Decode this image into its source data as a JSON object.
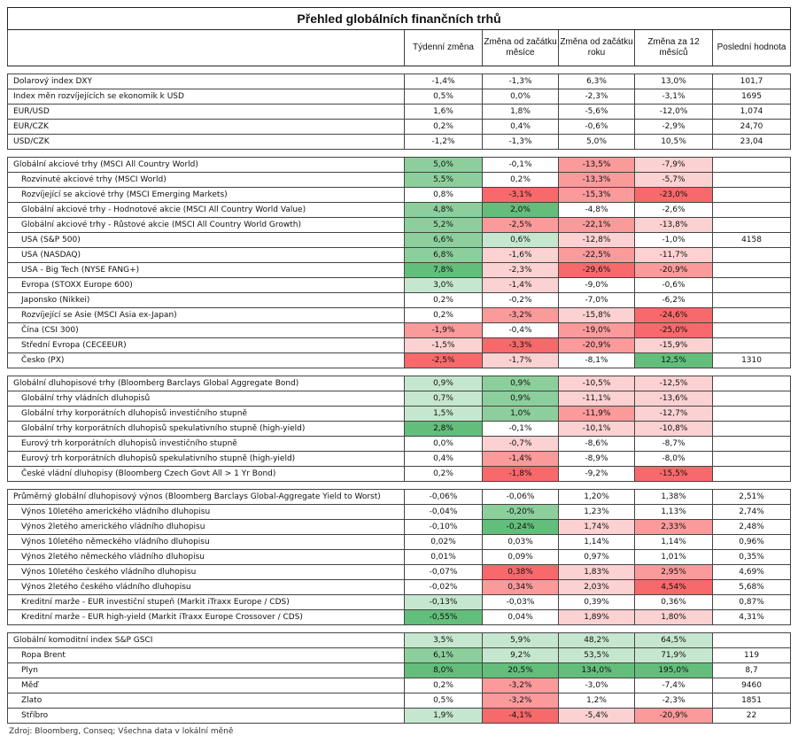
{
  "title": "Přehled globálních finančních trhů",
  "columns": [
    "",
    "Týdenní změna",
    "Změna od začátku měsíce",
    "Změna od začátku roku",
    "Změna za 12 měsíců",
    "Poslední hodnota"
  ],
  "colors": {
    "g3": "#63be7b",
    "g2": "#8ccf9c",
    "g1": "#c6e7cf",
    "r3": "#f8696b",
    "r2": "#fa9a9b",
    "r1": "#fcd1d1"
  },
  "groups": [
    {
      "rows": [
        {
          "label": "Dolarový index DXY",
          "indent": false,
          "values": [
            "-1,4%",
            "-1,3%",
            "6,3%",
            "13,0%",
            "101,7"
          ],
          "colors": [
            "",
            "",
            "",
            "",
            ""
          ]
        },
        {
          "label": "Index měn rozvíjejících se ekonomik k USD",
          "indent": false,
          "values": [
            "0,5%",
            "0,0%",
            "-2,3%",
            "-3,1%",
            "1695"
          ],
          "colors": [
            "",
            "",
            "",
            "",
            ""
          ]
        },
        {
          "label": "EUR/USD",
          "indent": false,
          "values": [
            "1,6%",
            "1,8%",
            "-5,6%",
            "-12,0%",
            "1,074"
          ],
          "colors": [
            "",
            "",
            "",
            "",
            ""
          ]
        },
        {
          "label": "EUR/CZK",
          "indent": false,
          "values": [
            "0,2%",
            "0,4%",
            "-0,6%",
            "-2,9%",
            "24,70"
          ],
          "colors": [
            "",
            "",
            "",
            "",
            ""
          ]
        },
        {
          "label": "USD/CZK",
          "indent": false,
          "values": [
            "-1,2%",
            "-1,3%",
            "5,0%",
            "10,5%",
            "23,04"
          ],
          "colors": [
            "",
            "",
            "",
            "",
            ""
          ]
        }
      ]
    },
    {
      "rows": [
        {
          "label": "Globální akciové trhy (MSCI All Country World)",
          "indent": false,
          "values": [
            "5,0%",
            "-0,1%",
            "-13,5%",
            "-7,9%",
            ""
          ],
          "colors": [
            "g2",
            "",
            "r2",
            "r1",
            ""
          ]
        },
        {
          "label": "Rozvinuté akciové trhy (MSCI World)",
          "indent": true,
          "values": [
            "5,5%",
            "0,2%",
            "-13,3%",
            "-5,7%",
            ""
          ],
          "colors": [
            "g2",
            "",
            "r2",
            "r1",
            ""
          ]
        },
        {
          "label": "Rozvíjející se akciové trhy (MSCI Emerging Markets)",
          "indent": true,
          "values": [
            "0,8%",
            "-3,1%",
            "-15,3%",
            "-23,0%",
            ""
          ],
          "colors": [
            "",
            "r3",
            "r2",
            "r3",
            ""
          ]
        },
        {
          "label": "Globální akciové trhy - Hodnotové akcie (MSCI All Country World Value)",
          "indent": true,
          "values": [
            "4,8%",
            "2,0%",
            "-4,8%",
            "-2,6%",
            ""
          ],
          "colors": [
            "g2",
            "g3",
            "",
            "",
            ""
          ]
        },
        {
          "label": "Globální akciové trhy - Růstové akcie (MSCI All Country World Growth)",
          "indent": true,
          "values": [
            "5,2%",
            "-2,5%",
            "-22,1%",
            "-13,8%",
            ""
          ],
          "colors": [
            "g2",
            "r2",
            "r2",
            "r1",
            ""
          ]
        },
        {
          "label": "USA (S&P 500)",
          "indent": true,
          "values": [
            "6,6%",
            "0,6%",
            "-12,8%",
            "-1,0%",
            "4158"
          ],
          "colors": [
            "g2",
            "g1",
            "r1",
            "",
            ""
          ]
        },
        {
          "label": "USA (NASDAQ)",
          "indent": true,
          "values": [
            "6,8%",
            "-1,6%",
            "-22,5%",
            "-11,7%",
            ""
          ],
          "colors": [
            "g2",
            "r1",
            "r2",
            "r1",
            ""
          ]
        },
        {
          "label": "USA - Big Tech (NYSE FANG+)",
          "indent": true,
          "values": [
            "7,8%",
            "-2,3%",
            "-29,6%",
            "-20,9%",
            ""
          ],
          "colors": [
            "g3",
            "r1",
            "r3",
            "r2",
            ""
          ]
        },
        {
          "label": "Evropa (STOXX Europe 600)",
          "indent": true,
          "values": [
            "3,0%",
            "-1,4%",
            "-9,0%",
            "-0,6%",
            ""
          ],
          "colors": [
            "g1",
            "r1",
            "",
            "",
            ""
          ]
        },
        {
          "label": "Japonsko (Nikkei)",
          "indent": true,
          "values": [
            "0,2%",
            "-0,2%",
            "-7,0%",
            "-6,2%",
            ""
          ],
          "colors": [
            "",
            "",
            "",
            "",
            ""
          ]
        },
        {
          "label": "Rozvíjející se Asie (MSCI Asia ex-Japan)",
          "indent": true,
          "values": [
            "0,2%",
            "-3,2%",
            "-15,8%",
            "-24,6%",
            ""
          ],
          "colors": [
            "",
            "r2",
            "r1",
            "r3",
            ""
          ]
        },
        {
          "label": "Čína (CSI 300)",
          "indent": true,
          "values": [
            "-1,9%",
            "-0,4%",
            "-19,0%",
            "-25,0%",
            ""
          ],
          "colors": [
            "r2",
            "",
            "r2",
            "r3",
            ""
          ]
        },
        {
          "label": "Střední Evropa (CECEEUR)",
          "indent": true,
          "values": [
            "-1,5%",
            "-3,3%",
            "-20,9%",
            "-15,9%",
            ""
          ],
          "colors": [
            "r1",
            "r3",
            "r2",
            "r1",
            ""
          ]
        },
        {
          "label": "Česko (PX)",
          "indent": true,
          "values": [
            "-2,5%",
            "-1,7%",
            "-8,1%",
            "12,5%",
            "1310"
          ],
          "colors": [
            "r3",
            "r1",
            "",
            "g3",
            ""
          ]
        }
      ]
    },
    {
      "rows": [
        {
          "label": "Globální dluhopisové trhy (Bloomberg Barclays Global Aggregate Bond)",
          "indent": false,
          "values": [
            "0,9%",
            "0,9%",
            "-10,5%",
            "-12,5%",
            ""
          ],
          "colors": [
            "g1",
            "g2",
            "r1",
            "r1",
            ""
          ]
        },
        {
          "label": "Globální trhy vládních dluhopisů",
          "indent": true,
          "values": [
            "0,7%",
            "0,9%",
            "-11,1%",
            "-13,6%",
            ""
          ],
          "colors": [
            "g1",
            "g2",
            "r1",
            "r1",
            ""
          ]
        },
        {
          "label": "Globální trhy korporátních dluhopisů investičního stupně",
          "indent": true,
          "values": [
            "1,5%",
            "1,0%",
            "-11,9%",
            "-12,7%",
            ""
          ],
          "colors": [
            "g1",
            "g2",
            "r2",
            "r1",
            ""
          ]
        },
        {
          "label": "Globální trhy korporátních dluhopisů spekulativního stupně (high-yield)",
          "indent": true,
          "values": [
            "2,8%",
            "-0,1%",
            "-10,1%",
            "-10,8%",
            ""
          ],
          "colors": [
            "g3",
            "",
            "r1",
            "r1",
            ""
          ]
        },
        {
          "label": "Eurový trh korporátních dluhopisů investičního stupně",
          "indent": true,
          "values": [
            "0,0%",
            "-0,7%",
            "-8,6%",
            "-8,7%",
            ""
          ],
          "colors": [
            "",
            "r1",
            "",
            "",
            ""
          ]
        },
        {
          "label": "Eurový trh korporátních dluhopisů spekulativního stupně (high-yield)",
          "indent": true,
          "values": [
            "0,4%",
            "-1,4%",
            "-8,9%",
            "-8,0%",
            ""
          ],
          "colors": [
            "",
            "r2",
            "",
            "",
            ""
          ]
        },
        {
          "label": "České vládní dluhopisy (Bloomberg Czech Govt All > 1 Yr Bond)",
          "indent": true,
          "values": [
            "0,2%",
            "-1,8%",
            "-9,2%",
            "-15,5%",
            ""
          ],
          "colors": [
            "",
            "r3",
            "",
            "r3",
            ""
          ]
        }
      ]
    },
    {
      "rows": [
        {
          "label": "Průměrný globální dluhopisový výnos (Bloomberg Barclays Global-Aggregate Yield to Worst)",
          "indent": false,
          "values": [
            "-0,06%",
            "-0,06%",
            "1,20%",
            "1,38%",
            "2,51%"
          ],
          "colors": [
            "",
            "",
            "",
            "",
            ""
          ]
        },
        {
          "label": "Výnos 10letého amerického vládního dluhopisu",
          "indent": true,
          "values": [
            "-0,04%",
            "-0,20%",
            "1,23%",
            "1,13%",
            "2,74%"
          ],
          "colors": [
            "",
            "g2",
            "",
            "",
            ""
          ]
        },
        {
          "label": "Výnos 2letého amerického vládního dluhopisu",
          "indent": true,
          "values": [
            "-0,10%",
            "-0,24%",
            "1,74%",
            "2,33%",
            "2,48%"
          ],
          "colors": [
            "",
            "g3",
            "r1",
            "r2",
            ""
          ]
        },
        {
          "label": "Výnos 10letého německého vládního dluhopisu",
          "indent": true,
          "values": [
            "0,02%",
            "0,03%",
            "1,14%",
            "1,14%",
            "0,96%"
          ],
          "colors": [
            "",
            "",
            "",
            "",
            ""
          ]
        },
        {
          "label": "Výnos 2letého německého vládního dluhopisu",
          "indent": true,
          "values": [
            "0,01%",
            "0,09%",
            "0,97%",
            "1,01%",
            "0,35%"
          ],
          "colors": [
            "",
            "",
            "",
            "",
            ""
          ]
        },
        {
          "label": "Výnos 10letého českého vládního dluhopisu",
          "indent": true,
          "values": [
            "-0,07%",
            "0,38%",
            "1,83%",
            "2,95%",
            "4,69%"
          ],
          "colors": [
            "",
            "r3",
            "r1",
            "r2",
            ""
          ]
        },
        {
          "label": "Výnos 2letého českého vládního dluhopisu",
          "indent": true,
          "values": [
            "-0,02%",
            "0,34%",
            "2,03%",
            "4,54%",
            "5,68%"
          ],
          "colors": [
            "",
            "r2",
            "r1",
            "r3",
            ""
          ]
        },
        {
          "label": "Kreditní marže - EUR investiční stupeň (Markit iTraxx Europe / CDS)",
          "indent": true,
          "values": [
            "-0,13%",
            "-0,03%",
            "0,39%",
            "0,36%",
            "0,87%"
          ],
          "colors": [
            "g1",
            "",
            "",
            "",
            ""
          ]
        },
        {
          "label": "Kreditní marže - EUR high-yield (Markit iTraxx Europe Crossover / CDS)",
          "indent": true,
          "values": [
            "-0,55%",
            "0,04%",
            "1,89%",
            "1,80%",
            "4,31%"
          ],
          "colors": [
            "g3",
            "",
            "r1",
            "r1",
            ""
          ]
        }
      ]
    },
    {
      "rows": [
        {
          "label": "Globální komoditní index S&P GSCI",
          "indent": false,
          "values": [
            "3,5%",
            "5,9%",
            "48,2%",
            "64,5%",
            ""
          ],
          "colors": [
            "g1",
            "g1",
            "g1",
            "g1",
            ""
          ]
        },
        {
          "label": "Ropa Brent",
          "indent": true,
          "values": [
            "6,1%",
            "9,2%",
            "53,5%",
            "71,9%",
            "119"
          ],
          "colors": [
            "g2",
            "g1",
            "g1",
            "g1",
            ""
          ]
        },
        {
          "label": "Plyn",
          "indent": true,
          "values": [
            "8,0%",
            "20,5%",
            "134,0%",
            "195,0%",
            "8,7"
          ],
          "colors": [
            "g3",
            "g3",
            "g3",
            "g3",
            ""
          ]
        },
        {
          "label": "Měď",
          "indent": true,
          "values": [
            "0,2%",
            "-3,2%",
            "-3,0%",
            "-7,4%",
            "9460"
          ],
          "colors": [
            "",
            "r2",
            "",
            "",
            ""
          ]
        },
        {
          "label": "Zlato",
          "indent": true,
          "values": [
            "0,5%",
            "-3,2%",
            "1,2%",
            "-2,3%",
            "1851"
          ],
          "colors": [
            "",
            "r2",
            "",
            "",
            ""
          ]
        },
        {
          "label": "Stříbro",
          "indent": true,
          "values": [
            "1,9%",
            "-4,1%",
            "-5,4%",
            "-20,9%",
            "22"
          ],
          "colors": [
            "g1",
            "r3",
            "r1",
            "r2",
            ""
          ]
        }
      ]
    }
  ],
  "source": "Zdroj: Bloomberg, Conseq; Všechna data v lokální měně"
}
